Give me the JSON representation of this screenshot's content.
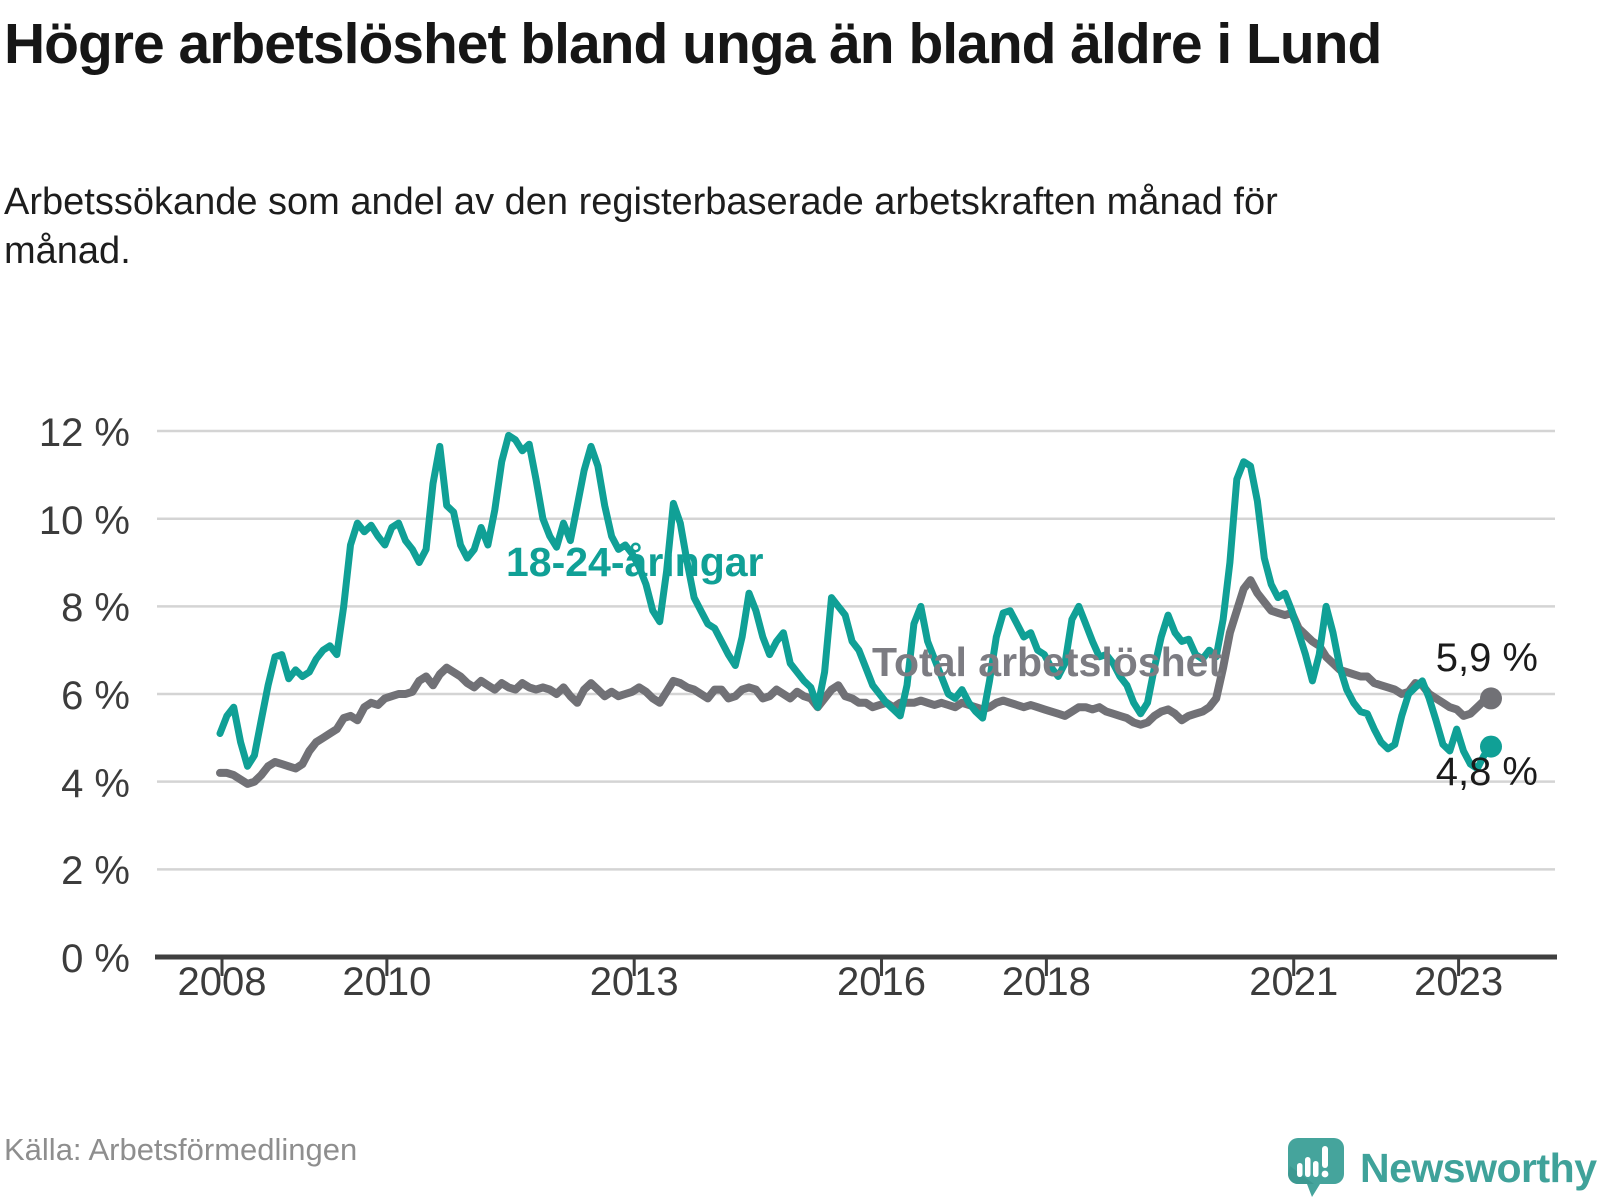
{
  "header": {
    "title": "Högre arbetslöshet bland unga än bland äldre i Lund",
    "subtitle": "Arbetssökande som andel av den registerbaserade arbetskraften månad för månad."
  },
  "chart_data": {
    "type": "line",
    "unit": "%",
    "frequency": "monthly",
    "x_start": "2008-01",
    "x_end": "2023-06",
    "ylim": [
      0,
      12
    ],
    "grid": true,
    "legend_position": "inline-labels",
    "y_ticks": [
      {
        "value": 12,
        "label": "12 %"
      },
      {
        "value": 10,
        "label": "10 %"
      },
      {
        "value": 8,
        "label": "8 %"
      },
      {
        "value": 6,
        "label": "6 %"
      },
      {
        "value": 4,
        "label": "4 %"
      },
      {
        "value": 2,
        "label": "2 %"
      },
      {
        "value": 0,
        "label": "0 %"
      }
    ],
    "x_ticks": [
      {
        "value": 2008,
        "label": "2008"
      },
      {
        "value": 2010,
        "label": "2010"
      },
      {
        "value": 2013,
        "label": "2013"
      },
      {
        "value": 2016,
        "label": "2016"
      },
      {
        "value": 2018,
        "label": "2018"
      },
      {
        "value": 2021,
        "label": "2021"
      },
      {
        "value": 2023,
        "label": "2023"
      }
    ],
    "series": [
      {
        "name": "Total arbetslöshet",
        "color": "#717176",
        "end_label": "5,9 %",
        "end_value": 5.9,
        "values": [
          4.2,
          4.2,
          4.15,
          4.05,
          3.95,
          4.0,
          4.15,
          4.35,
          4.45,
          4.4,
          4.35,
          4.3,
          4.4,
          4.7,
          4.9,
          5.0,
          5.1,
          5.2,
          5.45,
          5.5,
          5.4,
          5.7,
          5.8,
          5.75,
          5.9,
          5.95,
          6.0,
          6.0,
          6.05,
          6.3,
          6.4,
          6.2,
          6.45,
          6.6,
          6.5,
          6.4,
          6.25,
          6.15,
          6.3,
          6.2,
          6.1,
          6.25,
          6.15,
          6.1,
          6.25,
          6.15,
          6.1,
          6.15,
          6.1,
          6.0,
          6.15,
          5.95,
          5.8,
          6.1,
          6.25,
          6.1,
          5.95,
          6.05,
          5.95,
          6.0,
          6.05,
          6.15,
          6.05,
          5.9,
          5.8,
          6.05,
          6.3,
          6.25,
          6.15,
          6.1,
          6.0,
          5.9,
          6.1,
          6.1,
          5.9,
          5.95,
          6.1,
          6.15,
          6.1,
          5.9,
          5.95,
          6.1,
          6.0,
          5.9,
          6.05,
          5.95,
          5.9,
          5.7,
          5.9,
          6.1,
          6.2,
          5.95,
          5.9,
          5.8,
          5.8,
          5.7,
          5.75,
          5.8,
          5.7,
          5.8,
          5.8,
          5.8,
          5.85,
          5.8,
          5.75,
          5.8,
          5.75,
          5.7,
          5.8,
          5.75,
          5.7,
          5.65,
          5.7,
          5.8,
          5.85,
          5.8,
          5.75,
          5.7,
          5.75,
          5.7,
          5.65,
          5.6,
          5.55,
          5.5,
          5.6,
          5.7,
          5.7,
          5.65,
          5.7,
          5.6,
          5.55,
          5.5,
          5.45,
          5.35,
          5.3,
          5.35,
          5.5,
          5.6,
          5.65,
          5.55,
          5.4,
          5.5,
          5.55,
          5.6,
          5.7,
          5.9,
          6.6,
          7.4,
          7.9,
          8.4,
          8.6,
          8.3,
          8.1,
          7.9,
          7.85,
          7.8,
          7.85,
          7.5,
          7.35,
          7.2,
          7.1,
          6.85,
          6.7,
          6.55,
          6.5,
          6.45,
          6.4,
          6.4,
          6.25,
          6.2,
          6.15,
          6.1,
          6.0,
          6.05,
          6.25,
          6.2,
          6.0,
          5.9,
          5.8,
          5.7,
          5.65,
          5.5,
          5.55,
          5.7,
          5.85,
          5.9
        ]
      },
      {
        "name": "18-24-åringar",
        "color": "#10a096",
        "end_label": "4,8 %",
        "end_value": 4.8,
        "values": [
          5.1,
          5.5,
          5.7,
          4.9,
          4.35,
          4.6,
          5.4,
          6.2,
          6.85,
          6.9,
          6.35,
          6.55,
          6.4,
          6.5,
          6.8,
          7.0,
          7.1,
          6.9,
          8.0,
          9.4,
          9.9,
          9.7,
          9.85,
          9.6,
          9.4,
          9.8,
          9.9,
          9.5,
          9.3,
          9.0,
          9.3,
          10.8,
          11.65,
          10.3,
          10.15,
          9.4,
          9.1,
          9.3,
          9.8,
          9.4,
          10.2,
          11.3,
          11.9,
          11.8,
          11.55,
          11.7,
          10.9,
          10.0,
          9.6,
          9.35,
          9.9,
          9.5,
          10.3,
          11.1,
          11.65,
          11.2,
          10.3,
          9.6,
          9.3,
          9.4,
          9.2,
          8.9,
          8.5,
          7.9,
          7.65,
          8.8,
          10.35,
          9.9,
          9.0,
          8.2,
          7.9,
          7.6,
          7.5,
          7.2,
          6.9,
          6.65,
          7.3,
          8.3,
          7.9,
          7.3,
          6.9,
          7.2,
          7.4,
          6.7,
          6.5,
          6.3,
          6.15,
          5.7,
          6.5,
          8.2,
          8.0,
          7.8,
          7.2,
          7.0,
          6.6,
          6.2,
          6.0,
          5.8,
          5.65,
          5.5,
          6.2,
          7.6,
          8.0,
          7.2,
          6.8,
          6.4,
          6.0,
          5.9,
          6.1,
          5.8,
          5.6,
          5.45,
          6.3,
          7.3,
          7.85,
          7.9,
          7.6,
          7.3,
          7.4,
          7.0,
          6.9,
          6.6,
          6.4,
          6.7,
          7.7,
          8.0,
          7.6,
          7.2,
          6.85,
          6.9,
          6.7,
          6.4,
          6.2,
          5.8,
          5.55,
          5.8,
          6.6,
          7.3,
          7.8,
          7.4,
          7.2,
          7.25,
          6.9,
          6.8,
          7.0,
          6.85,
          7.7,
          9.0,
          10.9,
          11.3,
          11.2,
          10.4,
          9.1,
          8.5,
          8.2,
          8.3,
          7.9,
          7.4,
          6.9,
          6.3,
          6.9,
          8.0,
          7.4,
          6.6,
          6.1,
          5.8,
          5.6,
          5.55,
          5.2,
          4.9,
          4.75,
          4.85,
          5.5,
          6.0,
          6.15,
          6.3,
          5.9,
          5.4,
          4.85,
          4.7,
          5.2,
          4.7,
          4.4,
          4.3,
          4.6,
          4.8
        ]
      }
    ]
  },
  "footer": {
    "source": "Källa: Arbetsförmedlingen",
    "brand": "Newsworthy"
  },
  "style": {
    "accent_teal": "#10a096",
    "line_gray": "#717176",
    "grid_color": "#d4d4d4",
    "axis_color": "#3f3f3f",
    "logo_color": "#45a49c"
  }
}
